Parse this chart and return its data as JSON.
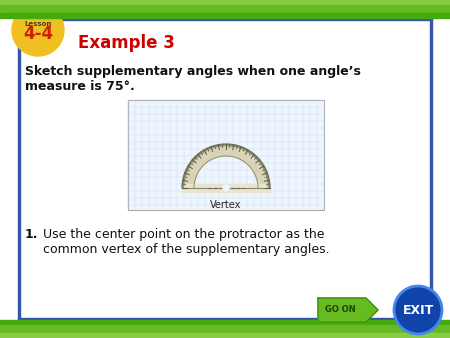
{
  "title": "Example 3",
  "title_color": "#cc0000",
  "title_fontsize": 12,
  "lesson_label": "Lesson",
  "lesson_number": "4-4",
  "lesson_bg": "#f0c020",
  "lesson_num_color": "#cc2200",
  "body_question_line1": "Sketch supplementary angles when one angle’s",
  "body_question_line2": "measure is 75°.",
  "step1_num": "1.",
  "step1_line1": "Use the center point on the protractor as the",
  "step1_line2": "common vertex of the supplementary angles.",
  "vertex_label": "Vertex",
  "slide_bg": "#ffffff",
  "green_dark": "#3a9a1a",
  "green_mid": "#5bbf30",
  "green_light": "#88d840",
  "border_blue": "#3355aa",
  "go_on_bg": "#6abf30",
  "exit_bg": "#2255aa",
  "protractor_fill": "#d8d0b0",
  "protractor_base_fill": "#e8e4d0",
  "protractor_edge": "#888866",
  "grid_line_color": "#c8ddf0",
  "grid_bg": "#eef5ff"
}
